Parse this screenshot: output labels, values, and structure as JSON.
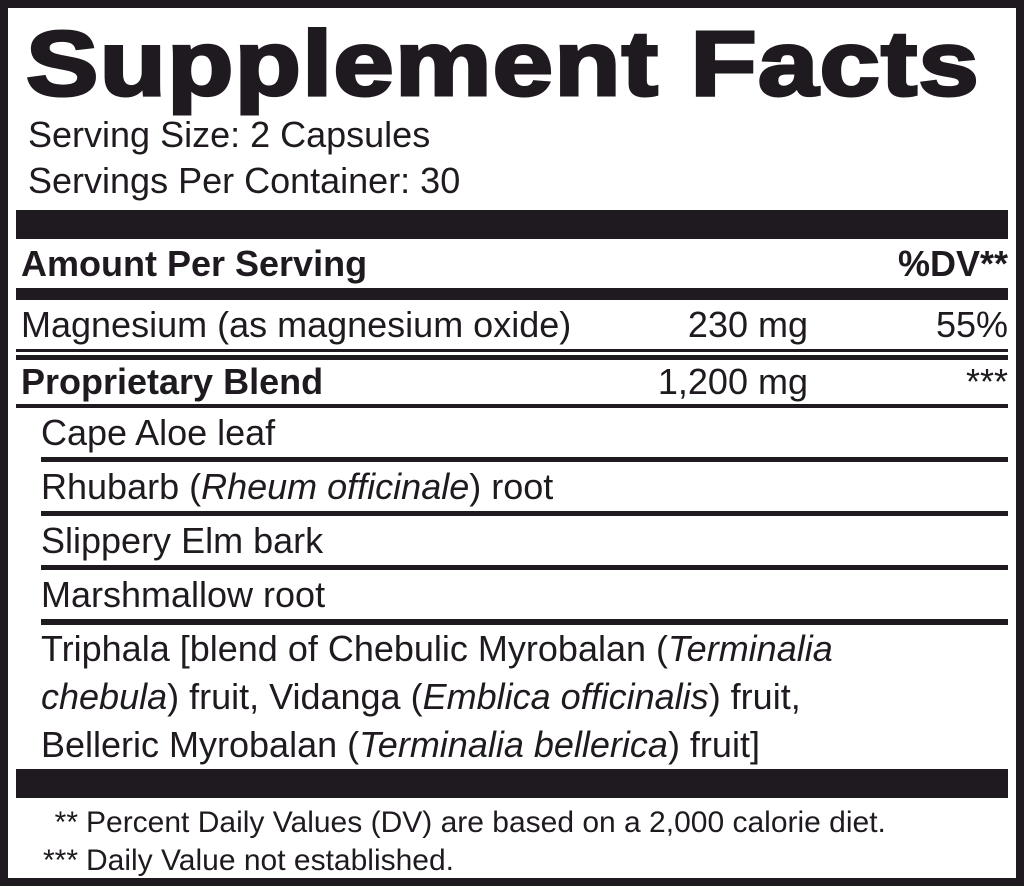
{
  "label": {
    "title": "Supplement Facts",
    "serving_size": "Serving Size: 2 Capsules",
    "servings_per_container": "Servings Per Container: 30",
    "header": {
      "amount_per_serving": "Amount Per Serving",
      "percent_dv": "%DV**"
    },
    "nutrients": [
      {
        "name": "Magnesium (as magnesium oxide)",
        "amount": "230 mg",
        "dv": "55%"
      },
      {
        "name": "Proprietary Blend",
        "amount": "1,200 mg",
        "dv": "***"
      }
    ],
    "blend_ingredients": [
      [
        {
          "t": "Cape Aloe leaf"
        }
      ],
      [
        {
          "t": "Rhubarb ("
        },
        {
          "t": "Rheum officinale",
          "i": true
        },
        {
          "t": ") root"
        }
      ],
      [
        {
          "t": "Slippery Elm bark"
        }
      ],
      [
        {
          "t": "Marshmallow root"
        }
      ],
      [
        {
          "t": "Triphala [blend of Chebulic Myrobalan ("
        },
        {
          "t": "Terminalia\nchebula",
          "i": true
        },
        {
          "t": ") fruit, Vidanga ("
        },
        {
          "t": "Emblica officinalis",
          "i": true
        },
        {
          "t": ") fruit,\nBelleric Myrobalan ("
        },
        {
          "t": "Terminalia bellerica",
          "i": true
        },
        {
          "t": ") fruit]"
        }
      ]
    ],
    "footnotes": [
      {
        "marker": "**",
        "text": "Percent Daily Values (DV) are based on a 2,000 calorie diet."
      },
      {
        "marker": "***",
        "text": "Daily Value not established."
      }
    ],
    "colors": {
      "ink": "#1f1a1f",
      "background": "#ffffff"
    }
  }
}
